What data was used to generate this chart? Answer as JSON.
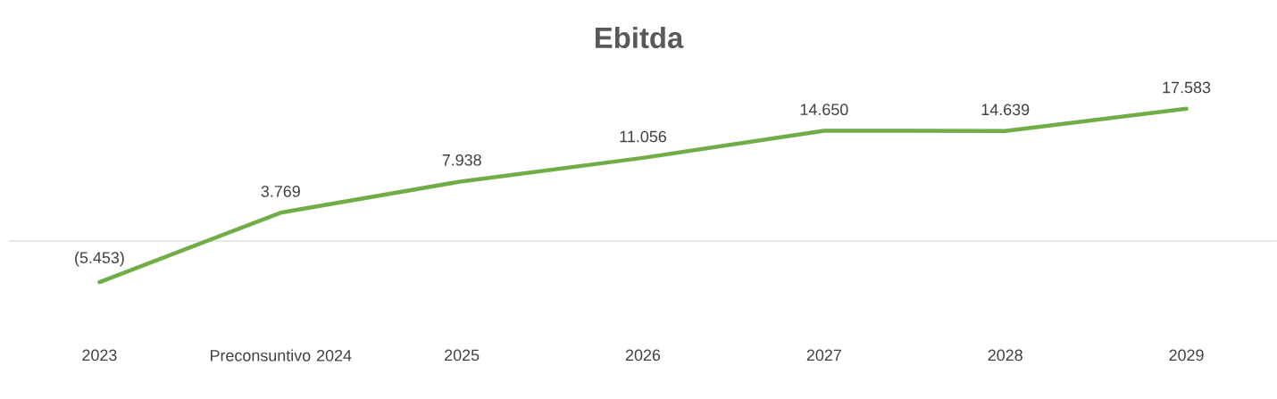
{
  "chart_data": {
    "type": "line",
    "title": "Ebitda",
    "categories": [
      "2023",
      "Preconsuntivo 2024",
      "2025",
      "2026",
      "2027",
      "2028",
      "2029"
    ],
    "values": [
      -5453,
      3769,
      7938,
      11056,
      14650,
      14639,
      17583
    ],
    "value_labels": [
      "(5.453)",
      "3.769",
      "7.938",
      "11.056",
      "14.650",
      "14.639",
      "17.583"
    ],
    "color": "#70ad47"
  }
}
